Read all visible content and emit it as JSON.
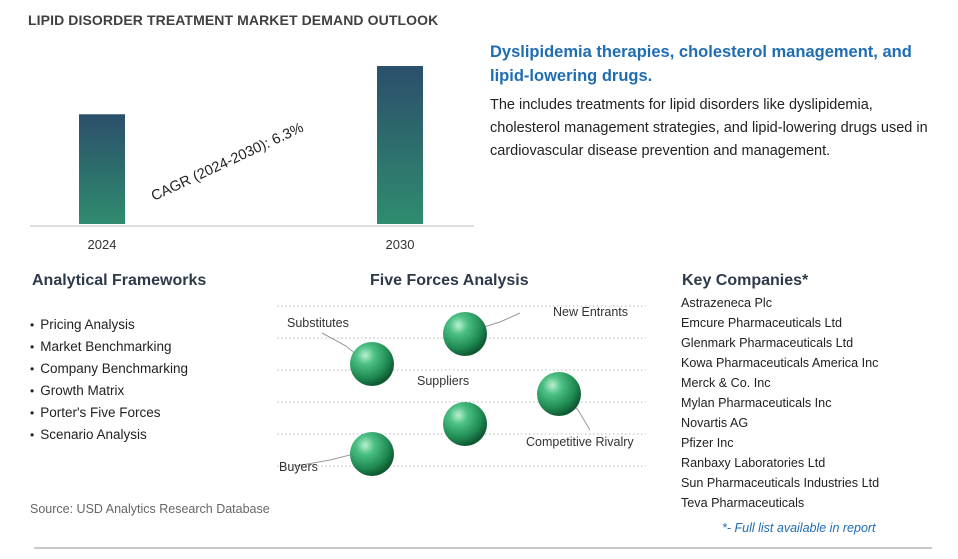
{
  "page": {
    "title": "LIPID DISORDER TREATMENT MARKET DEMAND OUTLOOK",
    "source": "Source: USD Analytics Research Database"
  },
  "chart_data": {
    "type": "bar",
    "categories": [
      "2024",
      "2030"
    ],
    "values": [
      1.0,
      1.44
    ],
    "title": "",
    "xlabel": "",
    "ylabel": "",
    "annotation": "CAGR (2024-2030):   6.3%",
    "bar_color_top": "#2b4f6b",
    "bar_color_bottom": "#2f8c6f"
  },
  "summary": {
    "headline": "Dyslipidemia therapies, cholesterol management, and lipid-lowering drugs.",
    "description": "The includes treatments for lipid disorders like dyslipidemia, cholesterol management strategies, and lipid-lowering drugs used in cardiovascular disease prevention and management."
  },
  "frameworks": {
    "title": "Analytical Frameworks",
    "items": [
      "Pricing Analysis",
      "Market Benchmarking",
      "Company Benchmarking",
      "Growth Matrix",
      "Porter's Five Forces",
      "Scenario Analysis"
    ]
  },
  "five_forces": {
    "title": "Five Forces Analysis",
    "forces": [
      "Substitutes",
      "New Entrants",
      "Suppliers",
      "Competitive Rivalry",
      "Buyers"
    ],
    "sphere_color": "#2fa36a"
  },
  "companies": {
    "title": "Key Companies*",
    "items": [
      "Astrazeneca Plc",
      "Emcure Pharmaceuticals Ltd",
      "Glenmark Pharmaceuticals Ltd",
      "Kowa Pharmaceuticals America Inc",
      "Merck & Co. Inc",
      "Mylan Pharmaceuticals Inc",
      "Novartis AG",
      "Pfizer Inc",
      "Ranbaxy Laboratories Ltd",
      "Sun Pharmaceuticals Industries Ltd",
      "Teva Pharmaceuticals"
    ],
    "note": "*- Full list available in report"
  }
}
